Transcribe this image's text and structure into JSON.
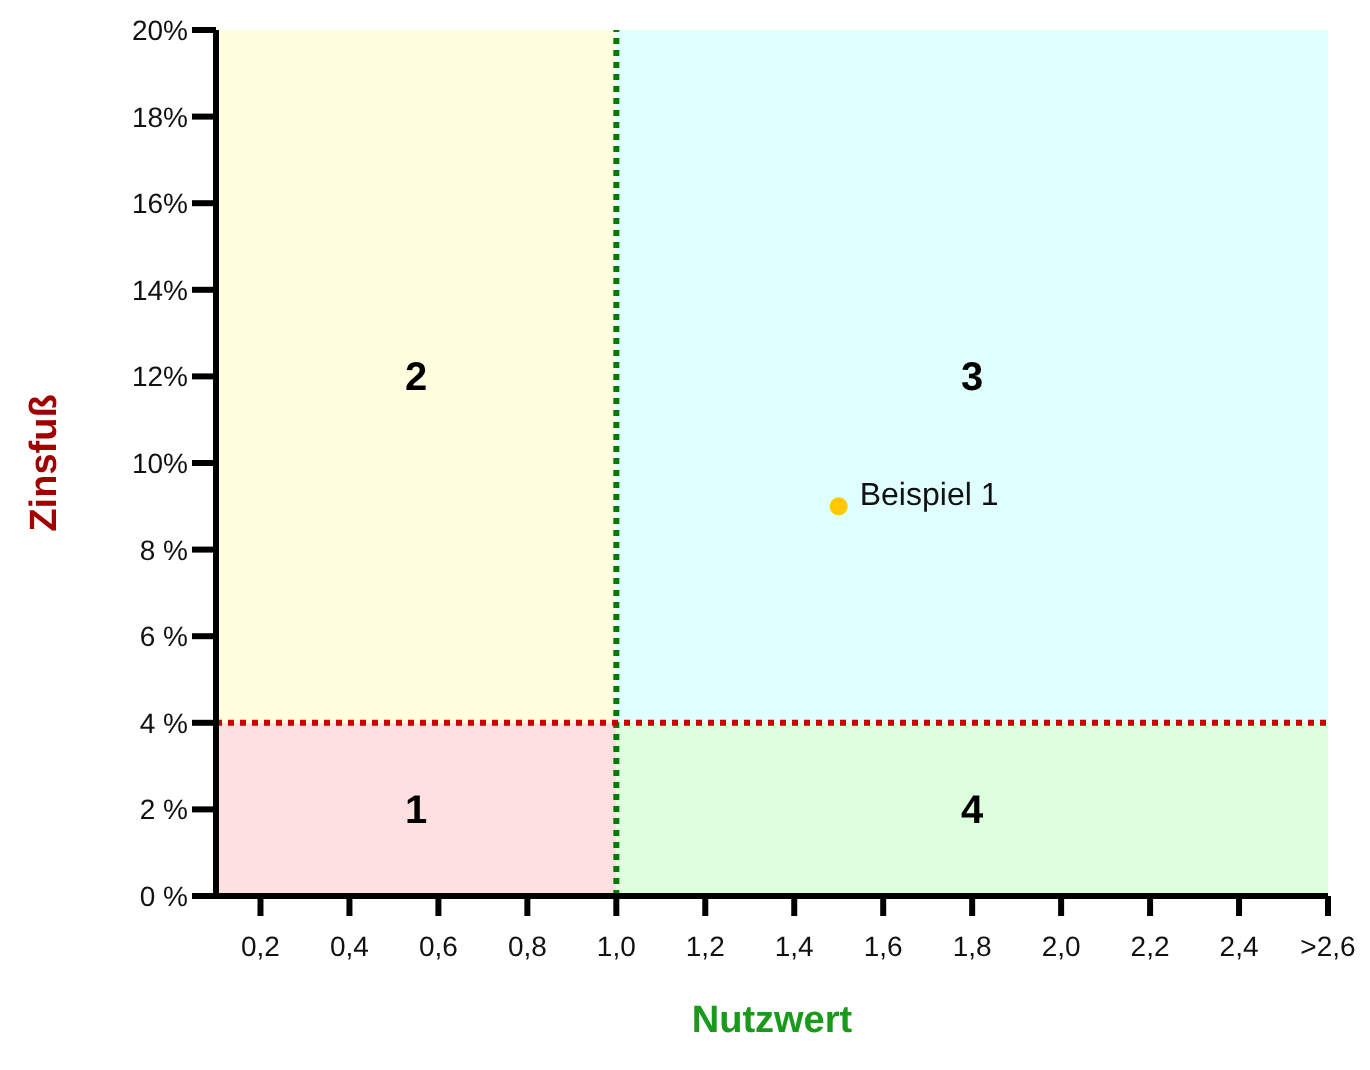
{
  "chart_data": {
    "type": "scatter",
    "xlabel": "Nutzwert",
    "ylabel": "Zinsfuß",
    "xlim": [
      0.1,
      2.6
    ],
    "xticks": [
      {
        "value": 0.2,
        "label": "0,2"
      },
      {
        "value": 0.4,
        "label": "0,4"
      },
      {
        "value": 0.6,
        "label": "0,6"
      },
      {
        "value": 0.8,
        "label": "0,8"
      },
      {
        "value": 1.0,
        "label": "1,0"
      },
      {
        "value": 1.2,
        "label": "1,2"
      },
      {
        "value": 1.4,
        "label": "1,4"
      },
      {
        "value": 1.6,
        "label": "1,6"
      },
      {
        "value": 1.8,
        "label": "1,8"
      },
      {
        "value": 2.0,
        "label": "2,0"
      },
      {
        "value": 2.2,
        "label": "2,2"
      },
      {
        "value": 2.4,
        "label": "2,4"
      },
      {
        "value": 2.6,
        "label": ">2,6"
      }
    ],
    "ylim": [
      0,
      20
    ],
    "yticks": [
      {
        "value": 0,
        "label": "0 %"
      },
      {
        "value": 2,
        "label": "2 %"
      },
      {
        "value": 4,
        "label": "4 %"
      },
      {
        "value": 6,
        "label": "6 %"
      },
      {
        "value": 8,
        "label": "8 %"
      },
      {
        "value": 10,
        "label": "10%"
      },
      {
        "value": 12,
        "label": "12%"
      },
      {
        "value": 14,
        "label": "14%"
      },
      {
        "value": 16,
        "label": "16%"
      },
      {
        "value": 18,
        "label": "18%"
      },
      {
        "value": 20,
        "label": "20%"
      }
    ],
    "series": [
      {
        "name": "Beispiel 1",
        "color": "#ffc800",
        "x": [
          1.5
        ],
        "values": [
          9
        ]
      }
    ],
    "annotations": [
      "1",
      "2",
      "3",
      "4"
    ],
    "ref_lines": [
      {
        "axis": "x",
        "value": 1.0,
        "color": "#007a00",
        "line_style": "dotted"
      },
      {
        "axis": "y",
        "value": 4,
        "color": "#cc0000",
        "line_style": "dotted"
      }
    ],
    "marker": "circle",
    "grid": false,
    "legend": false
  }
}
